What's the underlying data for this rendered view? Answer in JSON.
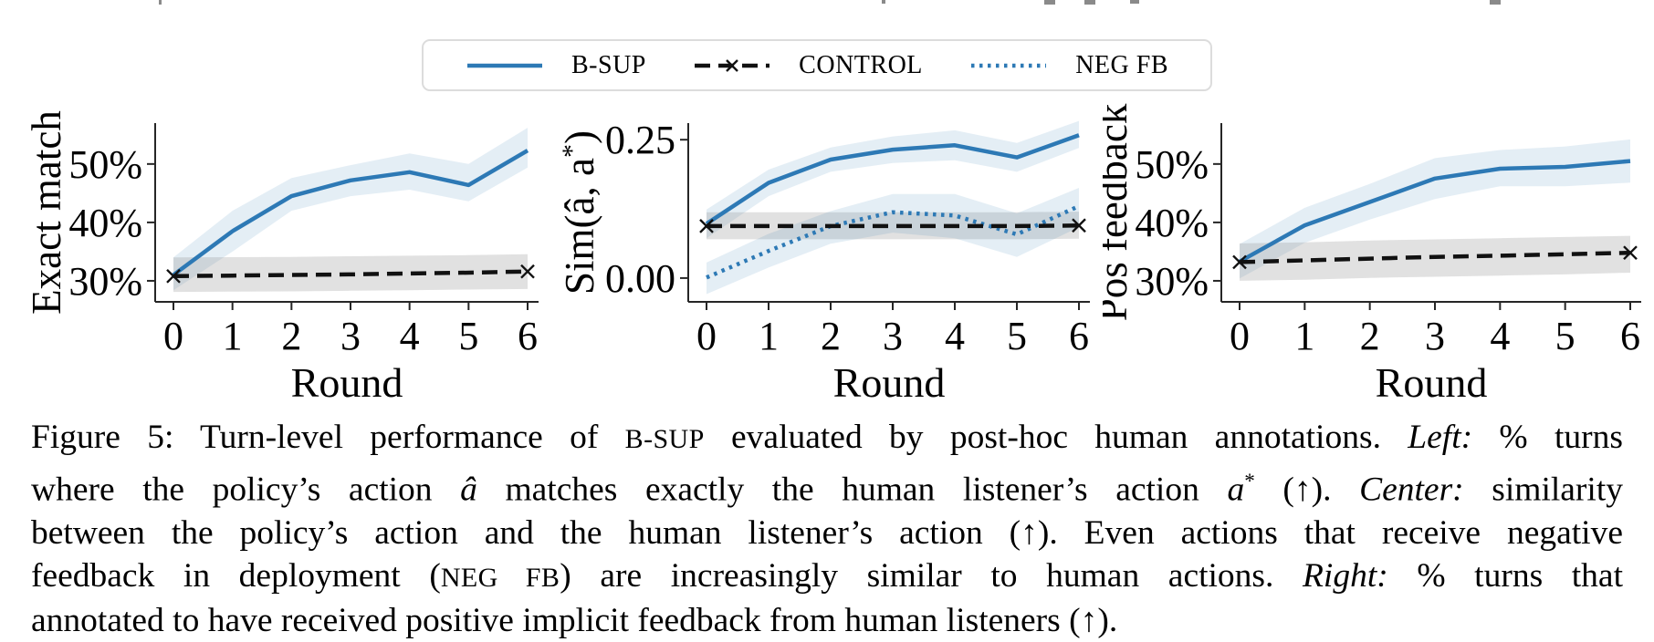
{
  "colors": {
    "series_blue": "#2d79b5",
    "series_black": "#111111",
    "band_gray": "#888888",
    "axis": "#262626",
    "legend_border": "#dcdcdc"
  },
  "legend": {
    "items": [
      {
        "label": "B-SUP",
        "style": "solid",
        "color": "#2d79b5",
        "marker": null
      },
      {
        "label": "CONTROL",
        "style": "dashed",
        "color": "#111111",
        "marker": "x"
      },
      {
        "label": "NEG FB",
        "style": "dotted",
        "color": "#2d79b5",
        "marker": null
      }
    ]
  },
  "chart_data": [
    {
      "type": "line",
      "name": "exact-match",
      "ylabel": "Exact match",
      "xlabel": "Round",
      "x": [
        0,
        1,
        2,
        3,
        4,
        5,
        6
      ],
      "xticks": [
        "0",
        "1",
        "2",
        "3",
        "4",
        "5",
        "6"
      ],
      "yticks": [
        {
          "v": 30,
          "label": "30%"
        },
        {
          "v": 40,
          "label": "40%"
        },
        {
          "v": 50,
          "label": "50%"
        }
      ],
      "ylim": [
        26.4,
        57.0
      ],
      "grid": false,
      "series": [
        {
          "name": "B-SUP",
          "style": "solid",
          "color": "#2d79b5",
          "values": [
            31.0,
            38.5,
            44.5,
            47.2,
            48.6,
            46.4,
            52.3
          ],
          "band_lower": [
            28.4,
            35.0,
            42.0,
            44.5,
            45.6,
            43.6,
            49.4
          ],
          "band_upper": [
            34.0,
            42.0,
            47.6,
            49.8,
            51.8,
            50.0,
            56.2
          ],
          "band_color": "#2d79b5",
          "band_opacity": 0.13,
          "endpoint_marker": null
        },
        {
          "name": "CONTROL",
          "style": "dashed",
          "color": "#111111",
          "values": [
            30.8,
            30.9,
            31.0,
            31.1,
            31.25,
            31.4,
            31.6
          ],
          "band_lower": [
            28.1,
            28.15,
            28.2,
            28.3,
            28.4,
            28.5,
            28.6
          ],
          "band_upper": [
            34.0,
            34.05,
            34.1,
            34.2,
            34.3,
            34.4,
            34.55
          ],
          "band_color": "#888888",
          "band_opacity": 0.25,
          "endpoint_marker": "x"
        }
      ]
    },
    {
      "type": "line",
      "name": "similarity",
      "ylabel": "Sim(â, a*)",
      "xlabel": "Round",
      "x": [
        0,
        1,
        2,
        3,
        4,
        5,
        6
      ],
      "xticks": [
        "0",
        "1",
        "2",
        "3",
        "4",
        "5",
        "6"
      ],
      "yticks": [
        {
          "v": 0.0,
          "label": "0.00"
        },
        {
          "v": 0.25,
          "label": "0.25"
        }
      ],
      "ylim": [
        -0.043,
        0.28
      ],
      "grid": false,
      "series": [
        {
          "name": "B-SUP",
          "style": "solid",
          "color": "#2d79b5",
          "values": [
            0.098,
            0.172,
            0.214,
            0.232,
            0.24,
            0.218,
            0.258
          ],
          "band_lower": [
            0.072,
            0.148,
            0.192,
            0.208,
            0.213,
            0.192,
            0.235
          ],
          "band_upper": [
            0.124,
            0.196,
            0.236,
            0.256,
            0.267,
            0.244,
            0.284
          ],
          "band_color": "#2d79b5",
          "band_opacity": 0.13,
          "endpoint_marker": null
        },
        {
          "name": "CONTROL",
          "style": "dashed",
          "color": "#111111",
          "values": [
            0.094,
            0.094,
            0.094,
            0.094,
            0.094,
            0.094,
            0.095
          ],
          "band_lower": [
            0.07,
            0.07,
            0.07,
            0.07,
            0.07,
            0.07,
            0.071
          ],
          "band_upper": [
            0.119,
            0.119,
            0.119,
            0.119,
            0.119,
            0.119,
            0.12
          ],
          "band_color": "#888888",
          "band_opacity": 0.25,
          "endpoint_marker": "x"
        },
        {
          "name": "NEG FB",
          "style": "dotted",
          "color": "#2d79b5",
          "values": [
            0.001,
            0.049,
            0.094,
            0.119,
            0.113,
            0.079,
            0.13
          ],
          "band_lower": [
            -0.029,
            0.019,
            0.062,
            0.082,
            0.072,
            0.038,
            0.092
          ],
          "band_upper": [
            0.028,
            0.08,
            0.121,
            0.152,
            0.152,
            0.117,
            0.163
          ],
          "band_color": "#2d79b5",
          "band_opacity": 0.13,
          "endpoint_marker": null
        }
      ]
    },
    {
      "type": "line",
      "name": "pos-feedback",
      "ylabel": "Pos feedback",
      "xlabel": "Round",
      "x": [
        0,
        1,
        2,
        3,
        4,
        5,
        6
      ],
      "xticks": [
        "0",
        "1",
        "2",
        "3",
        "4",
        "5",
        "6"
      ],
      "yticks": [
        {
          "v": 30,
          "label": "30%"
        },
        {
          "v": 40,
          "label": "40%"
        },
        {
          "v": 50,
          "label": "50%"
        }
      ],
      "ylim": [
        26.4,
        57.0
      ],
      "grid": false,
      "series": [
        {
          "name": "B-SUP",
          "style": "solid",
          "color": "#2d79b5",
          "values": [
            33.3,
            39.5,
            43.5,
            47.5,
            49.2,
            49.5,
            50.5
          ],
          "band_lower": [
            30.4,
            36.5,
            40.5,
            44.0,
            46.2,
            46.2,
            46.8
          ],
          "band_upper": [
            36.3,
            42.5,
            46.6,
            51.0,
            52.4,
            53.0,
            54.2
          ],
          "band_color": "#2d79b5",
          "band_opacity": 0.13,
          "endpoint_marker": null
        },
        {
          "name": "CONTROL",
          "style": "dashed",
          "color": "#111111",
          "values": [
            33.2,
            33.5,
            33.8,
            34.1,
            34.3,
            34.55,
            34.8
          ],
          "band_lower": [
            30.0,
            30.2,
            30.5,
            30.7,
            30.9,
            31.1,
            31.4
          ],
          "band_upper": [
            36.4,
            36.6,
            36.9,
            37.1,
            37.3,
            37.5,
            37.7
          ],
          "band_color": "#888888",
          "band_opacity": 0.25,
          "endpoint_marker": "x"
        }
      ]
    }
  ],
  "caption": {
    "lines": [
      [
        {
          "text": "Figure 5: Turn-level performance of ",
          "style": "n"
        },
        {
          "text": "B-SUP",
          "style": "sc"
        },
        {
          "text": " evaluated by post-hoc human annotations. ",
          "style": "n"
        },
        {
          "text": "Left:",
          "style": "i"
        },
        {
          "text": " % turns",
          "style": "n"
        }
      ],
      [
        {
          "text": "where the policy’s action ",
          "style": "n"
        },
        {
          "text": "â",
          "style": "m"
        },
        {
          "text": " matches exactly the human listener’s action ",
          "style": "n"
        },
        {
          "text": "a",
          "style": "m"
        },
        {
          "text": "*",
          "style": "sup"
        },
        {
          "text": " (↑). ",
          "style": "n"
        },
        {
          "text": "Center:",
          "style": "i"
        },
        {
          "text": " similarity",
          "style": "n"
        }
      ],
      [
        {
          "text": "between the policy’s action and the human listener’s action (↑). Even actions that receive negative",
          "style": "n"
        }
      ],
      [
        {
          "text": "feedback in deployment (",
          "style": "n"
        },
        {
          "text": "NEG FB",
          "style": "sc"
        },
        {
          "text": ") are increasingly similar to human actions. ",
          "style": "n"
        },
        {
          "text": "Right:",
          "style": "i"
        },
        {
          "text": " % turns that",
          "style": "n"
        }
      ],
      [
        {
          "text": "annotated to have received positive implicit feedback from human listeners (↑).",
          "style": "n"
        }
      ]
    ]
  }
}
